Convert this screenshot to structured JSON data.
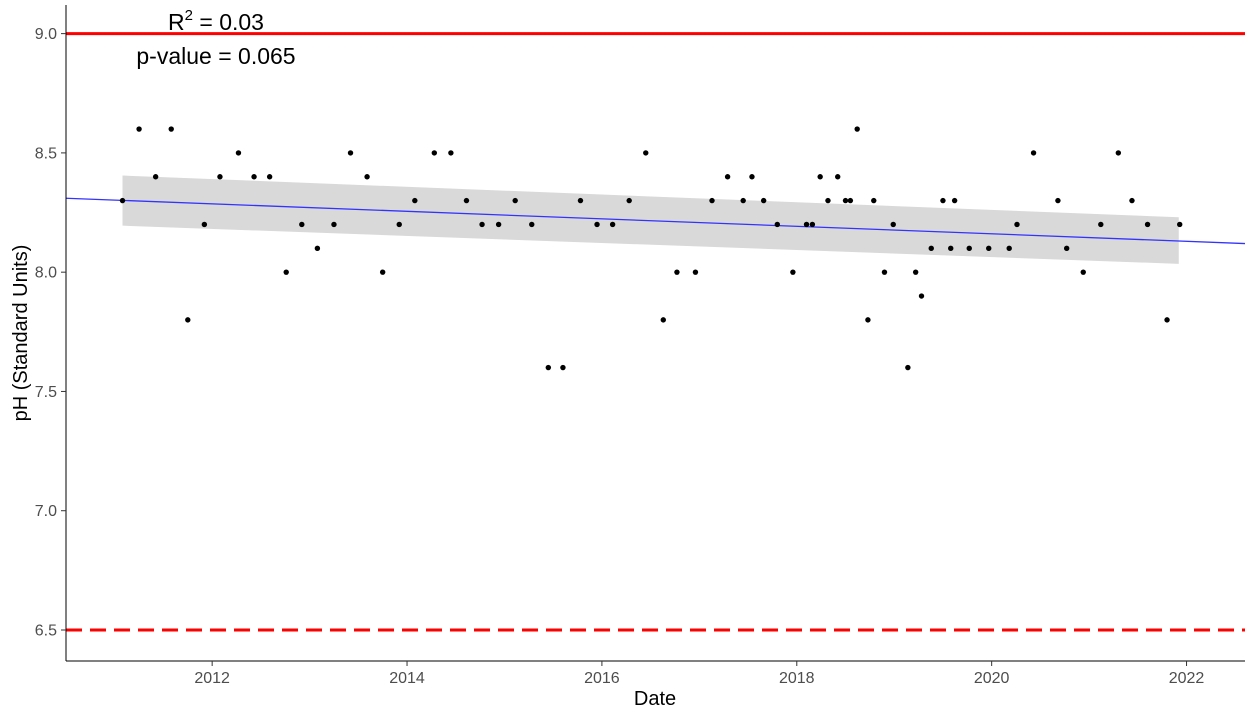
{
  "chart_data": {
    "type": "scatter",
    "xlabel": "Date",
    "ylabel": "pH (Standard Units)",
    "xlim": [
      2010.5,
      2022.6
    ],
    "ylim": [
      6.37,
      9.12
    ],
    "x_ticks": [
      2012,
      2014,
      2016,
      2018,
      2020,
      2022
    ],
    "x_tick_labels": [
      "2012",
      "2014",
      "2016",
      "2018",
      "2020",
      "2022"
    ],
    "y_ticks": [
      6.5,
      7.0,
      7.5,
      8.0,
      8.5,
      9.0
    ],
    "y_tick_labels": [
      "6.5",
      "7.0",
      "7.5",
      "8.0",
      "8.5",
      "9.0"
    ],
    "grid": false,
    "annotations": {
      "r2_prefix": "R",
      "r2_sup": "2",
      "r2_suffix": " = 0.03",
      "pvalue": "p-value = 0.065"
    },
    "reference_lines": [
      {
        "y": 9.0,
        "style": "solid",
        "color": "#ff0000"
      },
      {
        "y": 6.5,
        "style": "dashed",
        "color": "#ff0000"
      }
    ],
    "trend": {
      "color": "#3333ff",
      "band_color": "#d9d9d9",
      "line": [
        [
          2010.5,
          8.31
        ],
        [
          2022.6,
          8.12
        ]
      ],
      "band": [
        [
          2011.08,
          8.195,
          8.405
        ],
        [
          2021.92,
          8.035,
          8.23
        ]
      ]
    },
    "points_color": "#000000",
    "points": [
      [
        2011.08,
        8.3
      ],
      [
        2011.25,
        8.6
      ],
      [
        2011.42,
        8.4
      ],
      [
        2011.58,
        8.6
      ],
      [
        2011.75,
        7.8
      ],
      [
        2011.92,
        8.2
      ],
      [
        2012.08,
        8.4
      ],
      [
        2012.27,
        8.5
      ],
      [
        2012.43,
        8.4
      ],
      [
        2012.59,
        8.4
      ],
      [
        2012.76,
        8.0
      ],
      [
        2012.92,
        8.2
      ],
      [
        2013.08,
        8.1
      ],
      [
        2013.25,
        8.2
      ],
      [
        2013.42,
        8.5
      ],
      [
        2013.59,
        8.4
      ],
      [
        2013.75,
        8.0
      ],
      [
        2013.92,
        8.2
      ],
      [
        2014.08,
        8.3
      ],
      [
        2014.28,
        8.5
      ],
      [
        2014.45,
        8.5
      ],
      [
        2014.61,
        8.3
      ],
      [
        2014.77,
        8.2
      ],
      [
        2014.94,
        8.2
      ],
      [
        2015.11,
        8.3
      ],
      [
        2015.28,
        8.2
      ],
      [
        2015.45,
        7.6
      ],
      [
        2015.6,
        7.6
      ],
      [
        2015.78,
        8.3
      ],
      [
        2015.95,
        8.2
      ],
      [
        2016.11,
        8.2
      ],
      [
        2016.28,
        8.3
      ],
      [
        2016.45,
        8.5
      ],
      [
        2016.63,
        7.8
      ],
      [
        2016.77,
        8.0
      ],
      [
        2016.96,
        8.0
      ],
      [
        2017.13,
        8.3
      ],
      [
        2017.29,
        8.4
      ],
      [
        2017.45,
        8.3
      ],
      [
        2017.54,
        8.4
      ],
      [
        2017.66,
        8.3
      ],
      [
        2017.8,
        8.2
      ],
      [
        2017.96,
        8.0
      ],
      [
        2018.1,
        8.2
      ],
      [
        2018.16,
        8.2
      ],
      [
        2018.24,
        8.4
      ],
      [
        2018.32,
        8.3
      ],
      [
        2018.42,
        8.4
      ],
      [
        2018.5,
        8.3
      ],
      [
        2018.55,
        8.3
      ],
      [
        2018.62,
        8.6
      ],
      [
        2018.73,
        7.8
      ],
      [
        2018.79,
        8.3
      ],
      [
        2018.9,
        8.0
      ],
      [
        2018.99,
        8.2
      ],
      [
        2019.14,
        7.6
      ],
      [
        2019.22,
        8.0
      ],
      [
        2019.28,
        7.9
      ],
      [
        2019.38,
        8.1
      ],
      [
        2019.5,
        8.3
      ],
      [
        2019.58,
        8.1
      ],
      [
        2019.62,
        8.3
      ],
      [
        2019.77,
        8.1
      ],
      [
        2019.97,
        8.1
      ],
      [
        2020.18,
        8.1
      ],
      [
        2020.26,
        8.2
      ],
      [
        2020.43,
        8.5
      ],
      [
        2020.68,
        8.3
      ],
      [
        2020.77,
        8.1
      ],
      [
        2020.94,
        8.0
      ],
      [
        2021.12,
        8.2
      ],
      [
        2021.3,
        8.5
      ],
      [
        2021.44,
        8.3
      ],
      [
        2021.6,
        8.2
      ],
      [
        2021.8,
        7.8
      ],
      [
        2021.93,
        8.2
      ]
    ]
  }
}
